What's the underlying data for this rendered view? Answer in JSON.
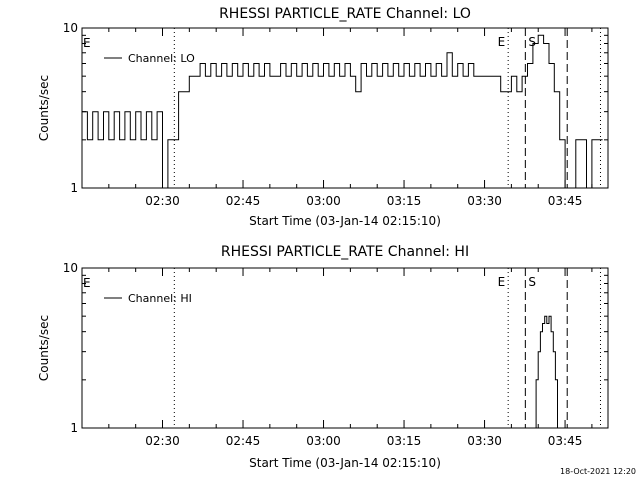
{
  "chart_data": [
    {
      "type": "line",
      "title": "RHESSI PARTICLE_RATE Channel: LO",
      "xlabel": "Start Time (03-Jan-14 02:15:10)",
      "ylabel": "Counts/sec",
      "yscale": "log",
      "ylim": [
        1,
        10
      ],
      "xlim": [
        0,
        98
      ],
      "xticks": [
        {
          "x": 15,
          "label": "02:30"
        },
        {
          "x": 30,
          "label": "02:45"
        },
        {
          "x": 45,
          "label": "03:00"
        },
        {
          "x": 60,
          "label": "03:15"
        },
        {
          "x": 75,
          "label": "03:30"
        },
        {
          "x": 90,
          "label": "03:45"
        }
      ],
      "yticks": [
        {
          "y": 1,
          "label": "1"
        },
        {
          "y": 10,
          "label": "10"
        }
      ],
      "legend": {
        "placement": "top-left",
        "label": "Channel: LO"
      },
      "markers": [
        {
          "x": 17.2,
          "style": "dotted",
          "label": ""
        },
        {
          "x": 79.4,
          "style": "dotted",
          "label": "E"
        },
        {
          "x": 82.6,
          "style": "dashed",
          "label": "S"
        },
        {
          "x": 90.4,
          "style": "dashed",
          "label": ""
        },
        {
          "x": 96.6,
          "style": "dotted",
          "label": ""
        }
      ],
      "corner_label": "E",
      "series": [
        {
          "name": "Channel: LO",
          "x": [
            0,
            1,
            2,
            3,
            4,
            5,
            6,
            7,
            8,
            9,
            10,
            11,
            12,
            13,
            14,
            15,
            16,
            17,
            18,
            19,
            20,
            21,
            22,
            23,
            24,
            25,
            26,
            27,
            28,
            29,
            30,
            31,
            32,
            33,
            34,
            35,
            36,
            37,
            38,
            39,
            40,
            41,
            42,
            43,
            44,
            45,
            46,
            47,
            48,
            49,
            50,
            51,
            52,
            53,
            54,
            55,
            56,
            57,
            58,
            59,
            60,
            61,
            62,
            63,
            64,
            65,
            66,
            67,
            68,
            69,
            70,
            71,
            72,
            73,
            74,
            75,
            76,
            77,
            78,
            79,
            80,
            81,
            82,
            83,
            84,
            85,
            86,
            87,
            88,
            89,
            90,
            91,
            92,
            93,
            94,
            95,
            96
          ],
          "y": [
            3,
            2,
            3,
            2,
            3,
            2,
            3,
            2,
            3,
            2,
            3,
            2,
            3,
            2,
            3,
            1,
            2,
            2,
            4,
            4,
            5,
            5,
            6,
            5,
            6,
            5,
            6,
            5,
            6,
            5,
            6,
            5,
            6,
            5,
            6,
            5,
            5,
            6,
            5,
            6,
            5,
            6,
            5,
            6,
            5,
            6,
            5,
            6,
            5,
            6,
            5,
            4,
            6,
            5,
            6,
            5,
            6,
            5,
            6,
            5,
            6,
            5,
            6,
            5,
            6,
            5,
            6,
            5,
            7,
            5,
            6,
            5,
            6,
            5,
            5,
            5,
            5,
            5,
            4,
            4,
            5,
            4,
            5,
            6,
            8,
            9,
            8,
            6,
            4,
            2,
            1,
            1,
            2,
            2,
            1,
            2,
            2
          ]
        }
      ]
    },
    {
      "type": "line",
      "title": "RHESSI PARTICLE_RATE Channel: HI",
      "xlabel": "Start Time (03-Jan-14 02:15:10)",
      "ylabel": "Counts/sec",
      "yscale": "log",
      "ylim": [
        1,
        10
      ],
      "xlim": [
        0,
        98
      ],
      "xticks": [
        {
          "x": 15,
          "label": "02:30"
        },
        {
          "x": 30,
          "label": "02:45"
        },
        {
          "x": 45,
          "label": "03:00"
        },
        {
          "x": 60,
          "label": "03:15"
        },
        {
          "x": 75,
          "label": "03:30"
        },
        {
          "x": 90,
          "label": "03:45"
        }
      ],
      "yticks": [
        {
          "y": 1,
          "label": "1"
        },
        {
          "y": 10,
          "label": "10"
        }
      ],
      "legend": {
        "placement": "top-left",
        "label": "Channel: HI"
      },
      "markers": [
        {
          "x": 17.2,
          "style": "dotted",
          "label": ""
        },
        {
          "x": 79.4,
          "style": "dotted",
          "label": "E"
        },
        {
          "x": 82.6,
          "style": "dashed",
          "label": "S"
        },
        {
          "x": 90.4,
          "style": "dashed",
          "label": ""
        },
        {
          "x": 96.6,
          "style": "dotted",
          "label": ""
        }
      ],
      "corner_label": "E",
      "series": [
        {
          "name": "Channel: HI",
          "x": [
            84.2,
            84.6,
            85.0,
            85.4,
            85.8,
            86.2,
            86.6,
            87.0,
            87.4,
            87.8,
            88.2,
            88.6
          ],
          "y": [
            1,
            2,
            3,
            4,
            4.5,
            5,
            4.5,
            5,
            4,
            3,
            2,
            1
          ]
        }
      ]
    }
  ],
  "footer": {
    "timestamp": "18-Oct-2021 12:20"
  }
}
